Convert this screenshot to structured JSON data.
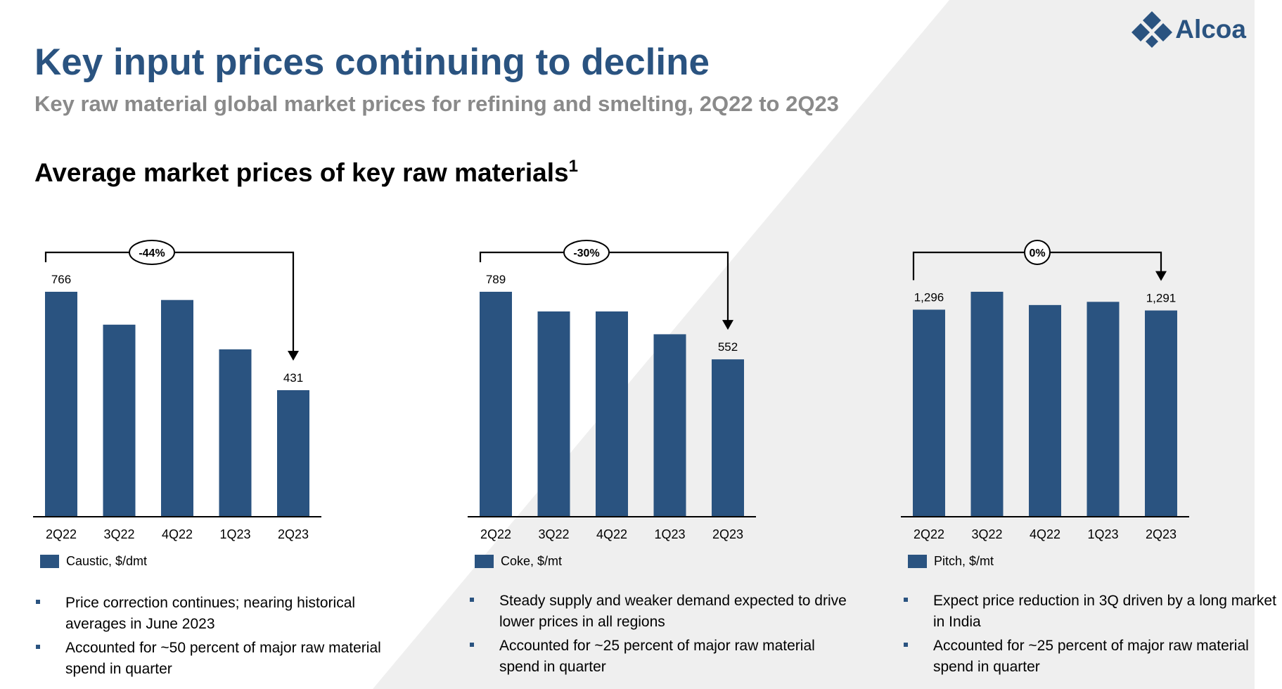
{
  "header": {
    "title": "Key input prices continuing to decline",
    "subtitle": "Key raw material global market prices for refining and smelting, 2Q22 to 2Q23",
    "section_title": "Average market prices of key raw materials",
    "section_footnote": "1",
    "logo_text": "Alcoa"
  },
  "colors": {
    "bar": "#2a5380",
    "title": "#2a5380",
    "subtitle": "#8a8a8a",
    "background_shape": "#efefef"
  },
  "chart_data": [
    {
      "type": "bar",
      "categories": [
        "2Q22",
        "3Q22",
        "4Q22",
        "1Q23",
        "2Q23"
      ],
      "values": [
        766,
        654,
        738,
        570,
        431
      ],
      "data_labels": [
        "766",
        "",
        "",
        "",
        "431"
      ],
      "change_label": "-44%",
      "legend": "Caustic, $/dmt",
      "ylim": [
        0,
        766
      ]
    },
    {
      "type": "bar",
      "categories": [
        "2Q22",
        "3Q22",
        "4Q22",
        "1Q23",
        "2Q23"
      ],
      "values": [
        789,
        720,
        720,
        640,
        552
      ],
      "data_labels": [
        "789",
        "",
        "",
        "",
        "552"
      ],
      "change_label": "-30%",
      "legend": "Coke, $/mt",
      "ylim": [
        0,
        789
      ]
    },
    {
      "type": "bar",
      "categories": [
        "2Q22",
        "3Q22",
        "4Q22",
        "1Q23",
        "2Q23"
      ],
      "values": [
        1296,
        1408,
        1325,
        1345,
        1291
      ],
      "data_labels": [
        "1,296",
        "",
        "",
        "",
        "1,291"
      ],
      "change_label": "0%",
      "legend": "Pitch, $/mt",
      "ylim": [
        0,
        1408
      ]
    }
  ],
  "notes": [
    [
      "Price correction continues; nearing historical averages in June 2023",
      "Accounted for ~50 percent of major raw material spend in quarter"
    ],
    [
      "Steady supply and weaker demand expected to drive lower prices in all regions",
      "Accounted for ~25 percent of major raw material spend in quarter"
    ],
    [
      "Expect price reduction in 3Q driven by a long market in India",
      "Accounted for ~25 percent of major raw material spend in quarter"
    ]
  ]
}
